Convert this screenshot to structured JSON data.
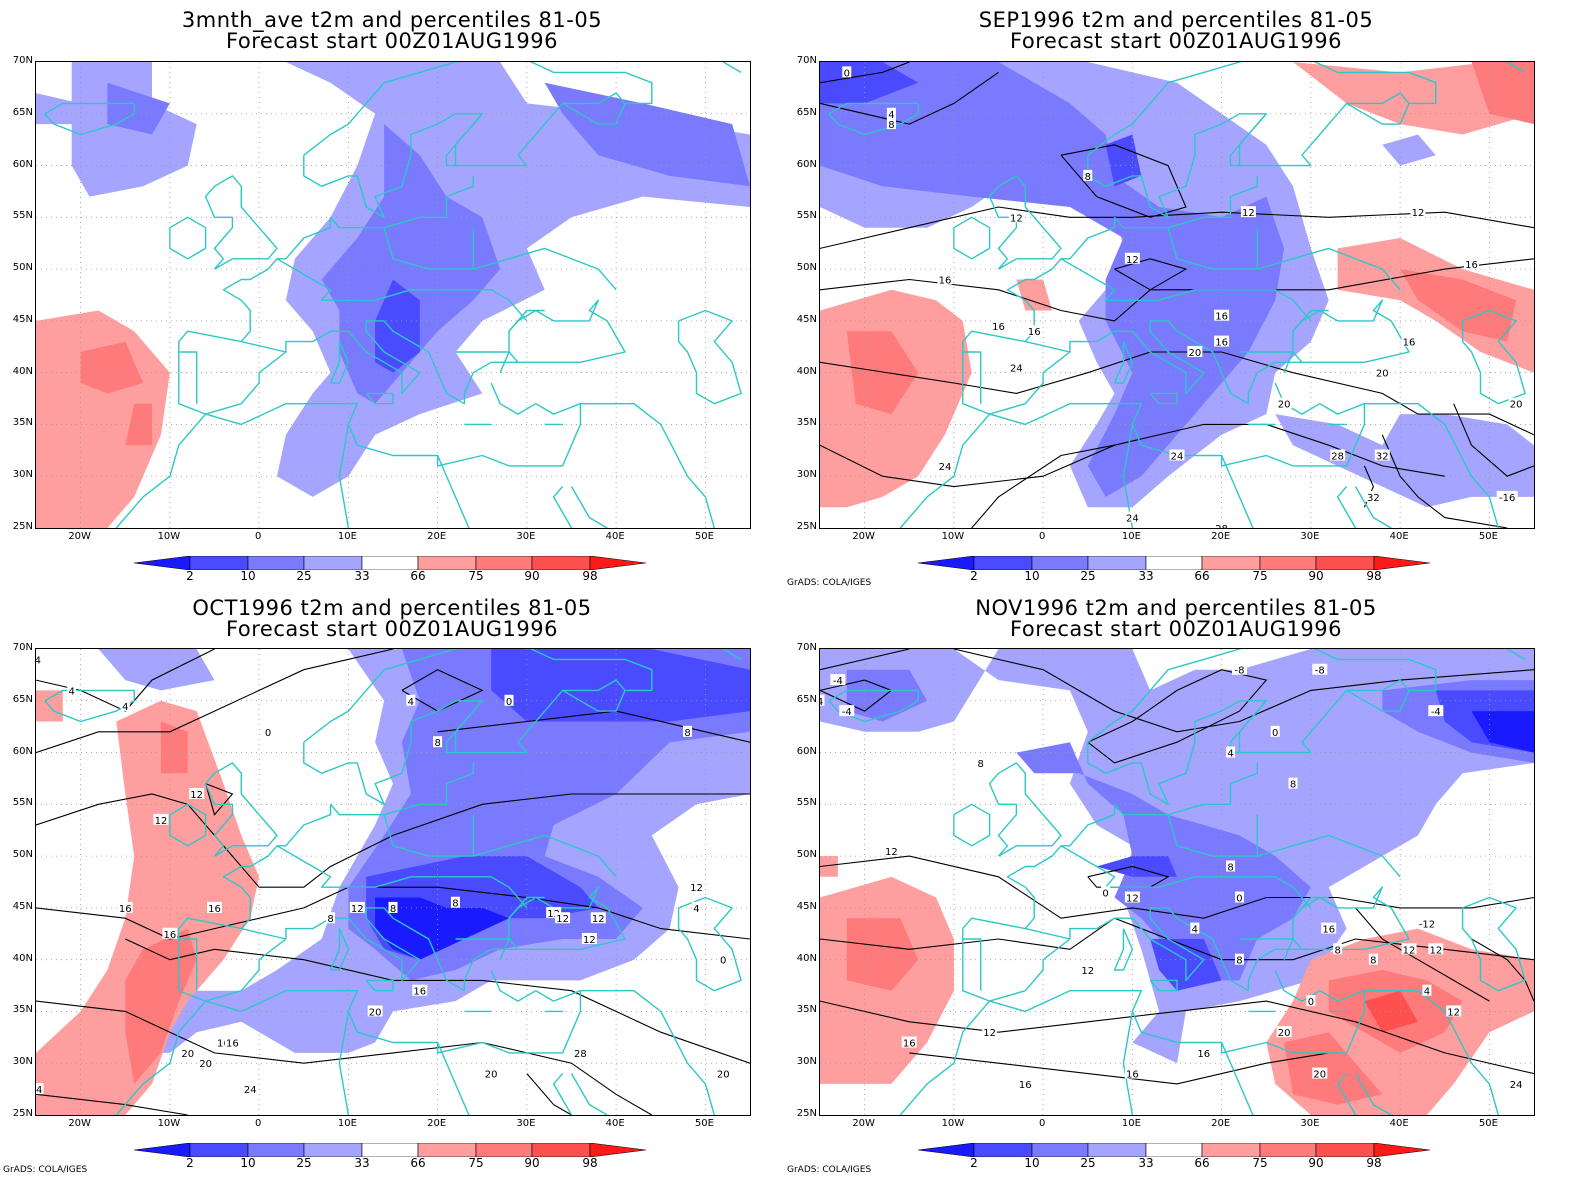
{
  "panels": [
    {
      "id": "p1",
      "title_line1": "3mnth_ave t2m and percentiles 81-05",
      "title_line2": "Forecast start 00Z01AUG1996",
      "credit": ""
    },
    {
      "id": "p2",
      "title_line1": "SEP1996 t2m and percentiles 81-05",
      "title_line2": "Forecast start 00Z01AUG1996",
      "credit": "GrADS: COLA/IGES"
    },
    {
      "id": "p3",
      "title_line1": "OCT1996 t2m and percentiles 81-05",
      "title_line2": "Forecast start 00Z01AUG1996",
      "credit": "GrADS: COLA/IGES"
    },
    {
      "id": "p4",
      "title_line1": "NOV1996 t2m and percentiles 81-05",
      "title_line2": "Forecast start 00Z01AUG1996",
      "credit": "GrADS: COLA/IGES"
    }
  ],
  "axes": {
    "lat_labels": [
      "70N",
      "65N",
      "60N",
      "55N",
      "50N",
      "45N",
      "40N",
      "35N",
      "30N",
      "25N"
    ],
    "lon_labels": [
      "20W",
      "10W",
      "0",
      "10E",
      "20E",
      "30E",
      "40E",
      "50E"
    ]
  },
  "colorbar": {
    "labels": [
      "2",
      "10",
      "25",
      "33",
      "66",
      "75",
      "90",
      "98"
    ],
    "colors": {
      "blue_dark": "#1a1aff",
      "blue": "#4a4aff",
      "blue_mid": "#7a7aff",
      "blue_light": "#a5a5ff",
      "red_light": "#ff9e9e",
      "red_mid": "#ff7a7a",
      "red": "#ff5050",
      "red_dark": "#ff1a1a"
    }
  },
  "contours": {
    "p2": [
      "0",
      "4",
      "8",
      "8",
      "12",
      "12",
      "12",
      "12",
      "16",
      "16",
      "16",
      "16",
      "16",
      "16",
      "16",
      "20",
      "20",
      "20",
      "20",
      "24",
      "24",
      "24",
      "24",
      "28",
      "28",
      "32",
      "32",
      "-16"
    ],
    "p3": [
      "-4",
      "4",
      "4",
      "0",
      "0",
      "4",
      "8",
      "8",
      "12",
      "12",
      "12",
      "16",
      "16",
      "16",
      "12",
      "8",
      "8",
      "12",
      "4",
      "0",
      "8",
      "12",
      "16",
      "20",
      "20",
      "16",
      "20",
      "16",
      "20",
      "24",
      "24",
      "28",
      "20",
      "12",
      "12"
    ],
    "p4": [
      "-4",
      "-4",
      "4",
      "-8",
      "-8",
      "-4",
      "0",
      "4",
      "8",
      "8",
      "12",
      "0",
      "0",
      "4",
      "8",
      "8",
      "12",
      "16",
      "12",
      "8",
      "12",
      "4",
      "12",
      "0",
      "8",
      "12",
      "16",
      "16",
      "16",
      "16",
      "20",
      "12",
      "20",
      "24",
      "-12"
    ]
  },
  "colors": {
    "coast": "#2cc7c7",
    "grid": "#9a9a9a"
  }
}
